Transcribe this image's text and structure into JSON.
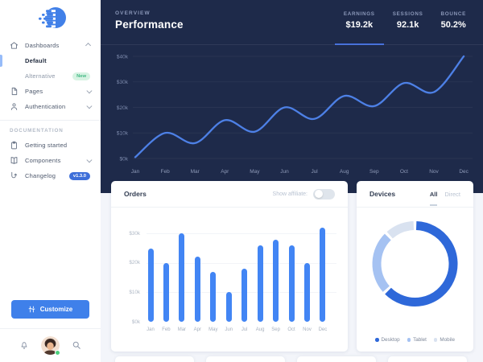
{
  "sidebar": {
    "nav_sections": [
      {
        "title": "",
        "items": [
          {
            "label": "Dashboards",
            "icon": "home-icon",
            "chevron": "up",
            "indent": false,
            "active": false,
            "badge": null
          },
          {
            "label": "Default",
            "icon": null,
            "chevron": null,
            "indent": true,
            "active": true,
            "badge": null
          },
          {
            "label": "Alternative",
            "icon": null,
            "chevron": null,
            "indent": true,
            "active": false,
            "badge": {
              "text": "New",
              "style": "green"
            }
          },
          {
            "label": "Pages",
            "icon": "file-icon",
            "chevron": "down",
            "indent": false,
            "active": false,
            "badge": null
          },
          {
            "label": "Authentication",
            "icon": "user-icon",
            "chevron": "down",
            "indent": false,
            "active": false,
            "badge": null
          }
        ]
      },
      {
        "title": "DOCUMENTATION",
        "items": [
          {
            "label": "Getting started",
            "icon": "clipboard-icon",
            "chevron": null,
            "indent": false,
            "active": false,
            "badge": null
          },
          {
            "label": "Components",
            "icon": "book-icon",
            "chevron": "down",
            "indent": false,
            "active": false,
            "badge": null
          },
          {
            "label": "Changelog",
            "icon": "changelog-icon",
            "chevron": null,
            "indent": false,
            "active": false,
            "badge": {
              "text": "v1.3.0",
              "style": "blue"
            }
          }
        ]
      }
    ],
    "customize_label": "Customize",
    "footer_icons": [
      "bell-icon",
      "avatar",
      "search-icon"
    ]
  },
  "header": {
    "overview_label": "OVERVIEW",
    "title": "Performance",
    "stats": [
      {
        "label": "EARNINGS",
        "value": "$19.2k",
        "active": true
      },
      {
        "label": "SESSIONS",
        "value": "92.1k",
        "active": false
      },
      {
        "label": "BOUNCE",
        "value": "50.2%",
        "active": false
      }
    ]
  },
  "orders_card": {
    "title": "Orders",
    "toggle_label": "Show affiliate:",
    "toggle_on": false
  },
  "devices_card": {
    "title": "Devices",
    "tabs": [
      {
        "label": "All",
        "active": true
      },
      {
        "label": "Direct",
        "active": false
      }
    ]
  },
  "chart_data": [
    {
      "type": "line",
      "title": "Performance (monthly earnings)",
      "x": [
        "Jan",
        "Feb",
        "Mar",
        "Apr",
        "May",
        "Jun",
        "Jul",
        "Aug",
        "Sep",
        "Oct",
        "Nov",
        "Dec"
      ],
      "values": [
        0.5,
        10,
        6,
        15,
        10.5,
        20,
        15.5,
        24.5,
        20.5,
        29.5,
        26,
        40
      ],
      "unit": "$k",
      "ylim": [
        0,
        40
      ],
      "yticks": [
        {
          "v": 0,
          "label": "$0k"
        },
        {
          "v": 10,
          "label": "$10k"
        },
        {
          "v": 20,
          "label": "$20k"
        },
        {
          "v": 30,
          "label": "$30k"
        },
        {
          "v": 40,
          "label": "$40k"
        }
      ],
      "line_color": "#4d80e6",
      "grid": true,
      "legend": false
    },
    {
      "type": "bar",
      "title": "Orders",
      "categories": [
        "Jan",
        "Feb",
        "Mar",
        "Apr",
        "May",
        "Jun",
        "Jul",
        "Aug",
        "Sep",
        "Oct",
        "Nov",
        "Dec"
      ],
      "values": [
        25,
        20,
        30,
        22,
        17,
        10,
        18,
        26,
        28,
        26,
        20,
        32
      ],
      "unit": "$k",
      "ylim": [
        0,
        33
      ],
      "yticks": [
        {
          "v": 0,
          "label": "$0k"
        },
        {
          "v": 10,
          "label": "$10k"
        },
        {
          "v": 20,
          "label": "$20k"
        },
        {
          "v": 30,
          "label": "$30k"
        }
      ],
      "bar_color": "#4285f4",
      "grid": true,
      "legend": false
    },
    {
      "type": "pie",
      "title": "Devices",
      "labels": [
        "Desktop",
        "Tablet",
        "Mobile"
      ],
      "values": [
        63,
        25,
        12
      ],
      "colors": [
        "#2e68d9",
        "#a5c2f2",
        "#d9e2f0"
      ],
      "donut": true,
      "legend_position": "bottom"
    }
  ],
  "colors": {
    "dark_bg": "#1e2a4a",
    "accent_blue": "#4285f4",
    "stat_underline": "#3f6ad8",
    "page_bg": "#f3f5fa"
  }
}
